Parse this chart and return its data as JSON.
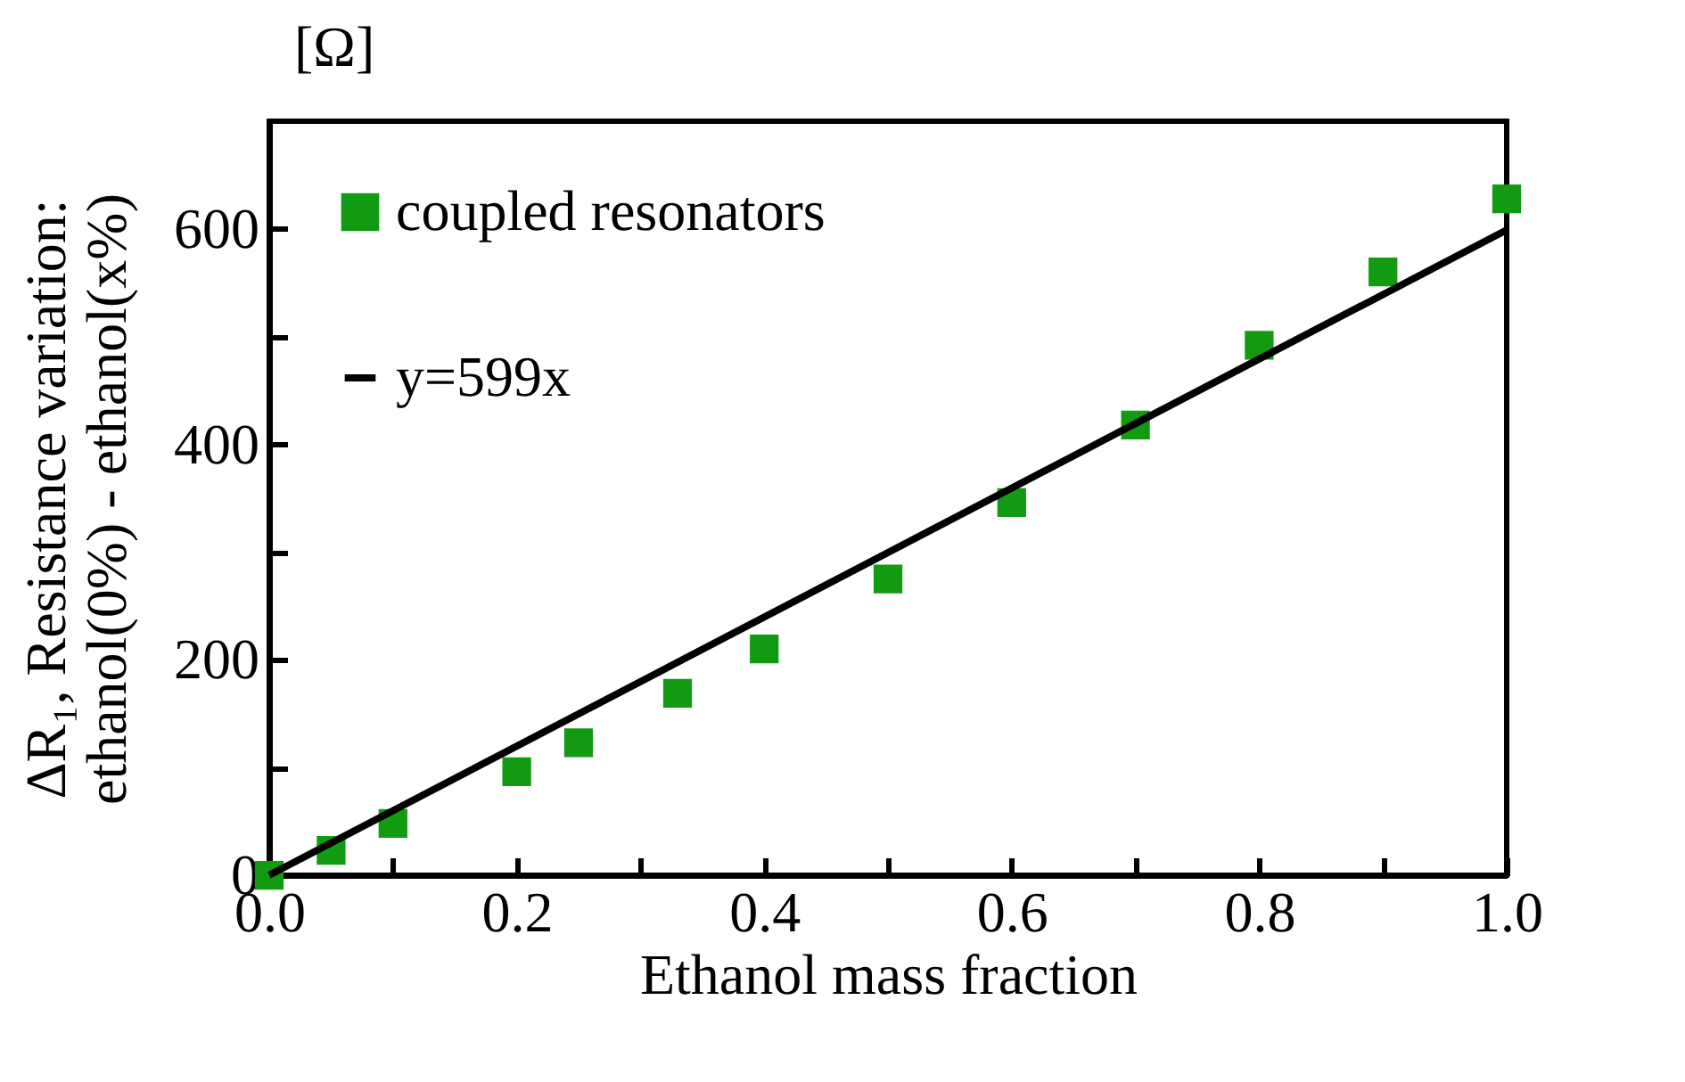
{
  "chart_data": {
    "type": "scatter",
    "xlabel": "Ethanol mass fraction",
    "ylabel": "ΔR₁, Resistance variation:\nethanol(0%) - ethanol(x%)",
    "annotations": [
      "[Ω]"
    ],
    "xlim": [
      0,
      1
    ],
    "ylim": [
      0,
      700
    ],
    "xticks": [
      {
        "value": 0,
        "label": "0.0"
      },
      {
        "value": 0.1,
        "label": null
      },
      {
        "value": 0.2,
        "label": "0.2"
      },
      {
        "value": 0.3,
        "label": null
      },
      {
        "value": 0.4,
        "label": "0.4"
      },
      {
        "value": 0.5,
        "label": null
      },
      {
        "value": 0.6,
        "label": "0.6"
      },
      {
        "value": 0.7,
        "label": null
      },
      {
        "value": 0.8,
        "label": "0.8"
      },
      {
        "value": 0.9,
        "label": null
      },
      {
        "value": 1,
        "label": "1.0"
      }
    ],
    "yticks": [
      0,
      {
        "value": 100,
        "label": null
      },
      200,
      {
        "value": 300,
        "label": null
      },
      400,
      {
        "value": 500,
        "label": null
      },
      600
    ],
    "grid": false,
    "legend": "top left",
    "series": [
      {
        "name": "coupled resonators",
        "marker": "square",
        "color": "#139a13",
        "x": [
          0,
          0.05,
          0.1,
          0.2,
          0.25,
          0.33,
          0.4,
          0.5,
          0.6,
          0.7,
          0.8,
          0.9,
          1.0
        ],
        "values": [
          0,
          23,
          48,
          96,
          123,
          169,
          210,
          275,
          346,
          418,
          492,
          560,
          628
        ]
      },
      {
        "name": "y=599x",
        "type": "line",
        "color": "#000000",
        "x": [
          0,
          1
        ],
        "values": [
          0,
          599
        ]
      }
    ]
  }
}
